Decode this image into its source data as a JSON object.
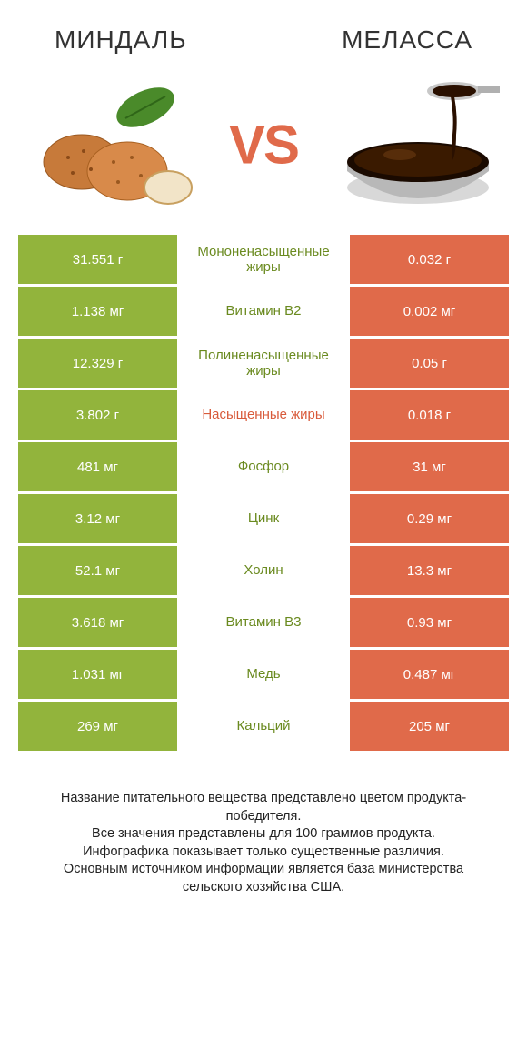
{
  "colors": {
    "left_bg": "#92b43c",
    "right_bg": "#e06a4a",
    "mid_left_text": "#6a8a1f",
    "mid_right_text": "#d85a3a",
    "title_text": "#333333",
    "body_bg": "#ffffff",
    "vs_text": "#e06a4a"
  },
  "left_title": "МИНДАЛЬ",
  "right_title": "МЕЛАССА",
  "vs_label": "VS",
  "fontsize": {
    "title": 28,
    "vs": 60,
    "cell": 15,
    "footer": 14.5
  },
  "rows": [
    {
      "left": "31.551 г",
      "mid": "Мононенасыщенные жиры",
      "right": "0.032 г",
      "winner": "left"
    },
    {
      "left": "1.138 мг",
      "mid": "Витамин B2",
      "right": "0.002 мг",
      "winner": "left"
    },
    {
      "left": "12.329 г",
      "mid": "Полиненасыщенные жиры",
      "right": "0.05 г",
      "winner": "left"
    },
    {
      "left": "3.802 г",
      "mid": "Насыщенные жиры",
      "right": "0.018 г",
      "winner": "right"
    },
    {
      "left": "481 мг",
      "mid": "Фосфор",
      "right": "31 мг",
      "winner": "left"
    },
    {
      "left": "3.12 мг",
      "mid": "Цинк",
      "right": "0.29 мг",
      "winner": "left"
    },
    {
      "left": "52.1 мг",
      "mid": "Холин",
      "right": "13.3 мг",
      "winner": "left"
    },
    {
      "left": "3.618 мг",
      "mid": "Витамин B3",
      "right": "0.93 мг",
      "winner": "left"
    },
    {
      "left": "1.031 мг",
      "mid": "Медь",
      "right": "0.487 мг",
      "winner": "left"
    },
    {
      "left": "269 мг",
      "mid": "Кальций",
      "right": "205 мг",
      "winner": "left"
    }
  ],
  "footer_lines": [
    "Название питательного вещества представлено цветом продукта-победителя.",
    "Все значения представлены для 100 граммов продукта.",
    "Инфографика показывает только существенные различия.",
    "Основным источником информации является база министерства сельского хозяйства США."
  ]
}
